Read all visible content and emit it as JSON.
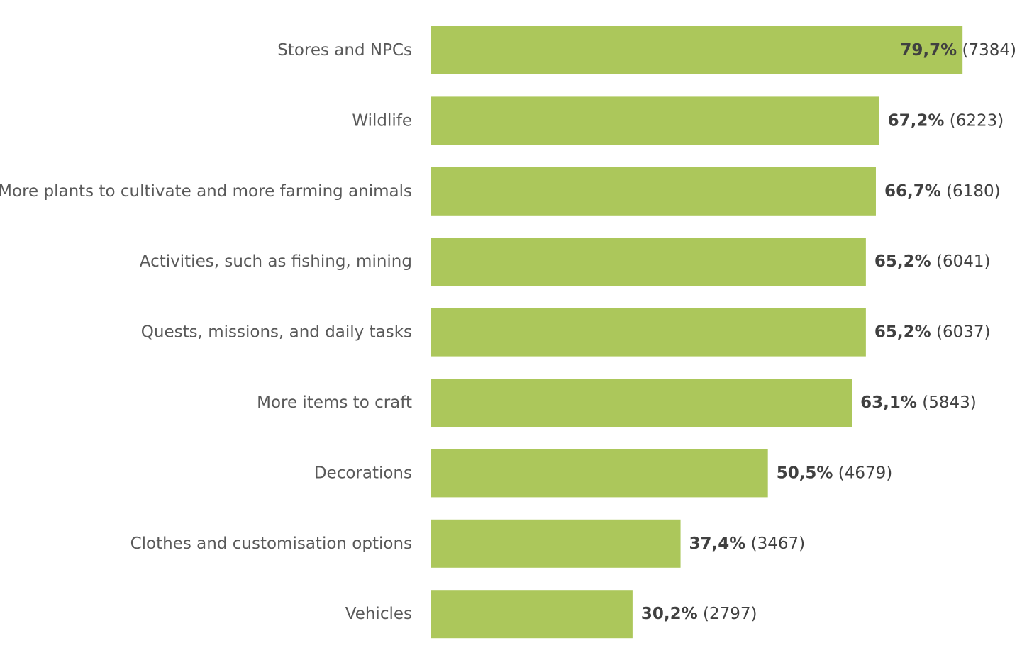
{
  "chart_data": {
    "type": "bar",
    "orientation": "horizontal",
    "categories": [
      "Stores and NPCs",
      "Wildlife",
      "More plants to cultivate and more farming animals",
      "Activities, such as fishing, mining",
      "Quests, missions, and daily tasks",
      "More items to craft",
      "Decorations",
      "Clothes and customisation options",
      "Vehicles"
    ],
    "values": [
      79.7,
      67.2,
      66.7,
      65.2,
      65.2,
      63.1,
      50.5,
      37.4,
      30.2
    ],
    "value_labels": [
      "79,7%",
      "67,2%",
      "66,7%",
      "65,2%",
      "65,2%",
      "63,1%",
      "50,5%",
      "37,4%",
      "30,2%"
    ],
    "count_labels": [
      "(7384)",
      "(6223)",
      "(6180)",
      "(6041)",
      "(6037)",
      "(5843)",
      "(4679)",
      "(3467)",
      "(2797)"
    ],
    "counts": [
      7384,
      6223,
      6180,
      6041,
      6037,
      5843,
      4679,
      3467,
      2797
    ],
    "title": "",
    "xlabel": "",
    "ylabel": "",
    "xlim": [
      0,
      100
    ],
    "grid": false,
    "legend": "none",
    "bar_color": "#acc75b",
    "text_color": "#595959",
    "value_color": "#404040"
  }
}
